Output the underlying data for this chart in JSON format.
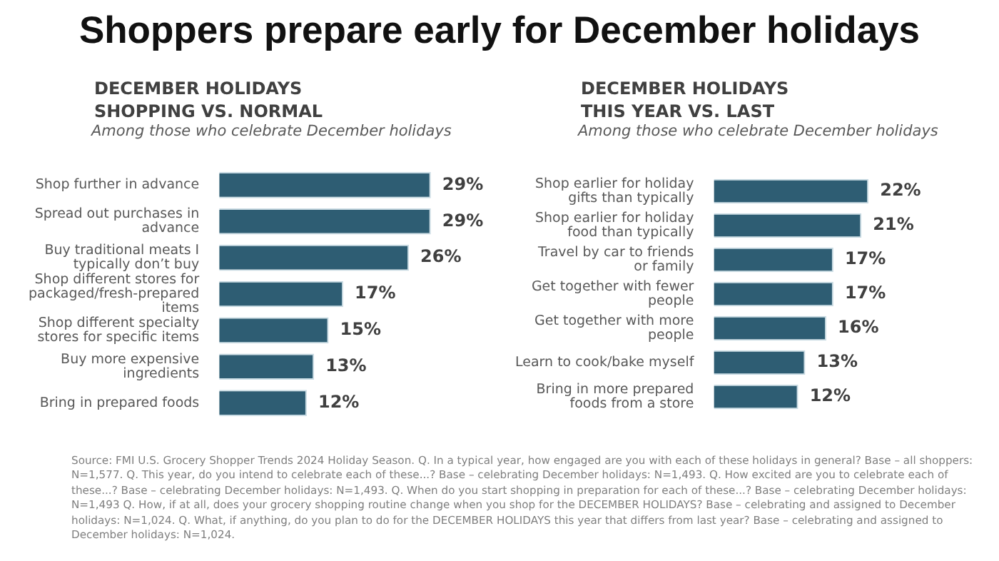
{
  "chart_data": [
    {
      "type": "other",
      "title": "Shoppers prepare early for December holidays"
    },
    {
      "type": "bar",
      "orientation": "horizontal",
      "title": "DECEMBER HOLIDAYS\nSHOPPING VS. NORMAL",
      "subtitle": "Among those who celebrate December holidays",
      "categories": [
        "Shop further in advance",
        "Spread out purchases in advance",
        "Buy traditional meats I typically don’t buy",
        "Shop different stores for packaged/fresh-prepared items",
        "Shop different specialty stores for specific items",
        "Buy more expensive ingredients",
        "Bring in prepared foods"
      ],
      "values": [
        29,
        29,
        26,
        17,
        15,
        13,
        12
      ],
      "color": "#2e5d73",
      "data_labels": true,
      "value_labels": [
        "29%",
        "29%",
        "26%",
        "17%",
        "15%",
        "13%",
        "12%"
      ],
      "grid": false,
      "legend": false,
      "tick_labels": "y"
    },
    {
      "type": "bar",
      "orientation": "horizontal",
      "title": "DECEMBER HOLIDAYS\nTHIS YEAR VS. LAST",
      "subtitle": "Among those who celebrate December holidays",
      "categories": [
        "Shop earlier for holiday gifts than typically",
        "Shop earlier for holiday food than typically",
        "Travel by car to friends or family",
        "Get together with fewer people",
        "Get together with more people",
        "Learn to cook/bake myself",
        "Bring in more prepared foods from a store"
      ],
      "values": [
        22,
        21,
        17,
        17,
        16,
        13,
        12
      ],
      "color": "#2e5d73",
      "data_labels": true,
      "value_labels": [
        "22%",
        "21%",
        "17%",
        "17%",
        "16%",
        "13%",
        "12%"
      ],
      "grid": false,
      "legend": false,
      "tick_labels": "y"
    },
    {
      "type": "other",
      "annotations": [
        "Source: FMI U.S. Grocery Shopper Trends 2024 Holiday Season. Q. In a typical year, how engaged are you with each of these holidays in general? Base – all shoppers: N=1,577. Q. This year, do you intend to celebrate each of these...? Base – celebrating December holidays: N=1,493. Q. How excited are you to celebrate each of these...? Base – celebrating December holidays: N=1,493. Q. When do you start shopping in preparation for each of these...? Base – celebrating December holidays: N=1,493 Q. How, if at all, does your grocery shopping routine change when you shop for the DECEMBER HOLIDAYS? Base – celebrating and assigned to December holidays: N=1,024. Q. What, if anything, do you plan to do for the DECEMBER HOLIDAYS this year that differs from last year? Base – celebrating and assigned to December holidays: N=1,024."
      ]
    }
  ]
}
